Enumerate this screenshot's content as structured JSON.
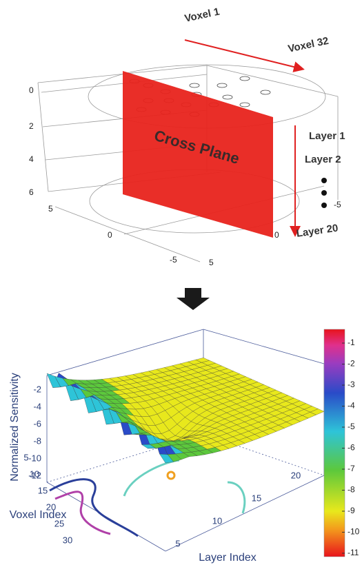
{
  "top_diagram": {
    "voxel_start": "Voxel 1",
    "voxel_end": "Voxel 32",
    "plane": "Cross Plane",
    "layer_1": "Layer 1",
    "layer_2": "Layer 2",
    "layer_end": "Layer 20",
    "depth_ticks": [
      "0",
      "2",
      "4",
      "6"
    ],
    "x_ticks": [
      "5",
      "0",
      "-5"
    ],
    "y_ticks": [
      "5",
      "0",
      "-5"
    ]
  },
  "surface_plot": {
    "z_label": "Normalized Sensitivity",
    "x_label": "Voxel Index",
    "y_label": "Layer Index",
    "z_ticks": [
      -2,
      -4,
      -6,
      -8,
      -10,
      -12
    ],
    "voxel_ticks": [
      5,
      10,
      15,
      20,
      25,
      30
    ],
    "layer_ticks": [
      5,
      10,
      15,
      20
    ],
    "colorbar_ticks": [
      -1,
      -2,
      -3,
      -4,
      -5,
      -6,
      -7,
      -8,
      -9,
      -10,
      -11
    ]
  }
}
